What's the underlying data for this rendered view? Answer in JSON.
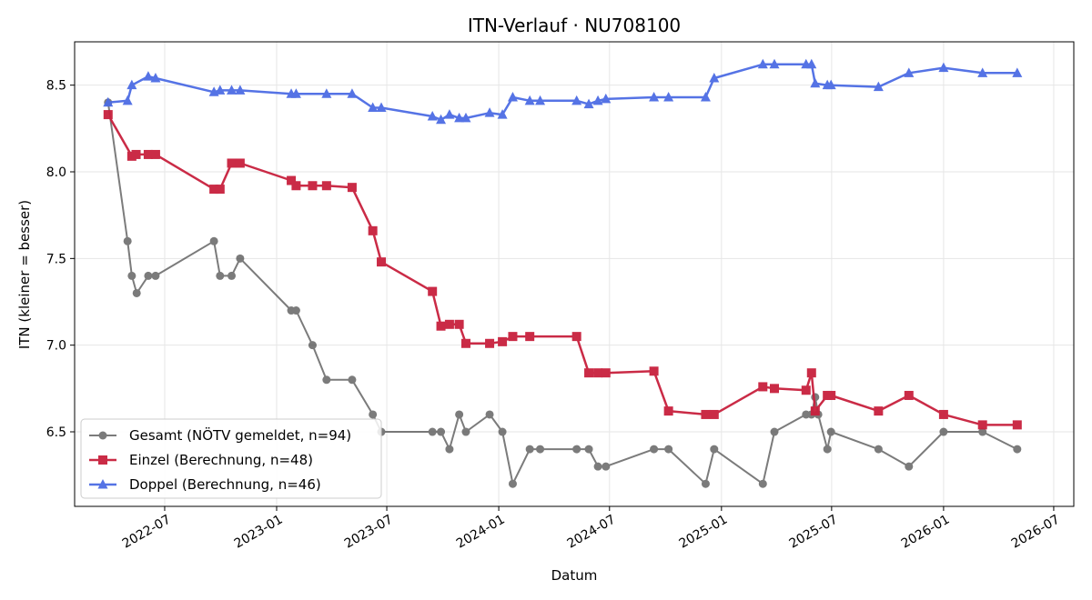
{
  "chart_data": {
    "type": "line",
    "title": "ITN-Verlauf · NU708100",
    "xlabel": "Datum",
    "ylabel": "ITN  (kleiner = besser)",
    "x_type": "date",
    "xlim": [
      "2022-02-03",
      "2026-08-03"
    ],
    "ylim": [
      6.07,
      8.75
    ],
    "x_ticks": [
      "2022-07",
      "2023-01",
      "2023-07",
      "2024-01",
      "2024-07",
      "2025-01",
      "2025-07",
      "2026-01",
      "2026-07"
    ],
    "y_ticks": [
      6.5,
      7.0,
      7.5,
      8.0,
      8.5
    ],
    "grid": true,
    "legend_position": "lower-left",
    "series": [
      {
        "name": "Gesamt (NÖTV gemeldet, n=94)",
        "color": "#444444",
        "marker": "circle",
        "x": [
          "2022-03-30",
          "2022-05-01",
          "2022-05-08",
          "2022-05-16",
          "2022-06-04",
          "2022-06-16",
          "2022-09-20",
          "2022-09-30",
          "2022-10-19",
          "2022-11-02",
          "2023-01-25",
          "2023-02-02",
          "2023-03-01",
          "2023-03-24",
          "2023-05-05",
          "2023-06-08",
          "2023-06-22",
          "2023-09-14",
          "2023-09-28",
          "2023-10-12",
          "2023-10-28",
          "2023-11-08",
          "2023-12-17",
          "2024-01-07",
          "2024-01-24",
          "2024-02-21",
          "2024-03-09",
          "2024-05-08",
          "2024-05-28",
          "2024-06-12",
          "2024-06-25",
          "2024-09-12",
          "2024-10-06",
          "2024-12-06",
          "2024-12-20",
          "2025-03-10",
          "2025-03-29",
          "2025-05-20",
          "2025-05-29",
          "2025-06-04",
          "2025-06-09",
          "2025-06-24",
          "2025-06-30",
          "2025-09-16",
          "2025-11-05",
          "2026-01-01",
          "2026-03-06",
          "2026-05-02"
        ],
        "y": [
          8.4,
          7.6,
          7.4,
          7.3,
          7.4,
          7.4,
          7.6,
          7.4,
          7.4,
          7.5,
          7.2,
          7.2,
          7.0,
          6.8,
          6.8,
          6.6,
          6.5,
          6.5,
          6.5,
          6.4,
          6.6,
          6.5,
          6.6,
          6.5,
          6.2,
          6.4,
          6.4,
          6.4,
          6.4,
          6.3,
          6.3,
          6.4,
          6.4,
          6.2,
          6.4,
          6.2,
          6.5,
          6.6,
          6.6,
          6.7,
          6.6,
          6.4,
          6.5,
          6.4,
          6.3,
          6.5,
          6.5,
          6.4
        ]
      },
      {
        "name": "Einzel (Berechnung, n=48)",
        "color": "#c8203d",
        "marker": "square",
        "x": [
          "2022-03-30",
          "2022-05-08",
          "2022-05-15",
          "2022-06-04",
          "2022-06-16",
          "2022-09-20",
          "2022-09-30",
          "2022-10-19",
          "2022-11-02",
          "2023-01-25",
          "2023-02-02",
          "2023-03-01",
          "2023-03-24",
          "2023-05-05",
          "2023-06-08",
          "2023-06-22",
          "2023-09-14",
          "2023-09-28",
          "2023-10-12",
          "2023-10-28",
          "2023-11-08",
          "2023-12-17",
          "2024-01-07",
          "2024-01-24",
          "2024-02-21",
          "2024-05-08",
          "2024-05-28",
          "2024-06-12",
          "2024-06-25",
          "2024-09-12",
          "2024-10-06",
          "2024-12-06",
          "2024-12-20",
          "2025-03-10",
          "2025-03-29",
          "2025-05-20",
          "2025-05-29",
          "2025-06-04",
          "2025-06-24",
          "2025-06-30",
          "2025-09-16",
          "2025-11-05",
          "2026-01-01",
          "2026-03-06",
          "2026-05-02"
        ],
        "y": [
          8.33,
          8.09,
          8.1,
          8.1,
          8.1,
          7.9,
          7.9,
          8.05,
          8.05,
          7.95,
          7.92,
          7.92,
          7.92,
          7.91,
          7.66,
          7.48,
          7.31,
          7.11,
          7.12,
          7.12,
          7.01,
          7.01,
          7.02,
          7.05,
          7.05,
          7.05,
          6.84,
          6.84,
          6.84,
          6.85,
          6.62,
          6.6,
          6.6,
          6.76,
          6.75,
          6.74,
          6.84,
          6.62,
          6.71,
          6.71,
          6.62,
          6.71,
          6.6,
          6.54,
          6.54
        ]
      },
      {
        "name": "Doppel (Berechnung, n=46)",
        "color": "#4c6ce4",
        "marker": "triangle",
        "x": [
          "2022-03-30",
          "2022-05-01",
          "2022-05-08",
          "2022-06-04",
          "2022-06-16",
          "2022-09-20",
          "2022-09-30",
          "2022-10-19",
          "2022-11-02",
          "2023-01-25",
          "2023-02-02",
          "2023-03-24",
          "2023-05-05",
          "2023-06-08",
          "2023-06-22",
          "2023-09-14",
          "2023-09-28",
          "2023-10-12",
          "2023-10-28",
          "2023-11-08",
          "2023-12-17",
          "2024-01-07",
          "2024-01-24",
          "2024-02-21",
          "2024-03-09",
          "2024-05-08",
          "2024-05-28",
          "2024-06-12",
          "2024-06-25",
          "2024-09-12",
          "2024-10-06",
          "2024-12-06",
          "2024-12-20",
          "2025-03-10",
          "2025-03-29",
          "2025-05-20",
          "2025-05-29",
          "2025-06-04",
          "2025-06-24",
          "2025-06-30",
          "2025-09-16",
          "2025-11-05",
          "2026-01-01",
          "2026-03-06",
          "2026-05-02"
        ],
        "y": [
          8.4,
          8.41,
          8.5,
          8.55,
          8.54,
          8.46,
          8.47,
          8.47,
          8.47,
          8.45,
          8.45,
          8.45,
          8.45,
          8.37,
          8.37,
          8.32,
          8.3,
          8.33,
          8.31,
          8.31,
          8.34,
          8.33,
          8.43,
          8.41,
          8.41,
          8.41,
          8.39,
          8.41,
          8.42,
          8.43,
          8.43,
          8.43,
          8.54,
          8.62,
          8.62,
          8.62,
          8.62,
          8.51,
          8.5,
          8.5,
          8.49,
          8.57,
          8.6,
          8.57,
          8.57
        ]
      }
    ]
  }
}
